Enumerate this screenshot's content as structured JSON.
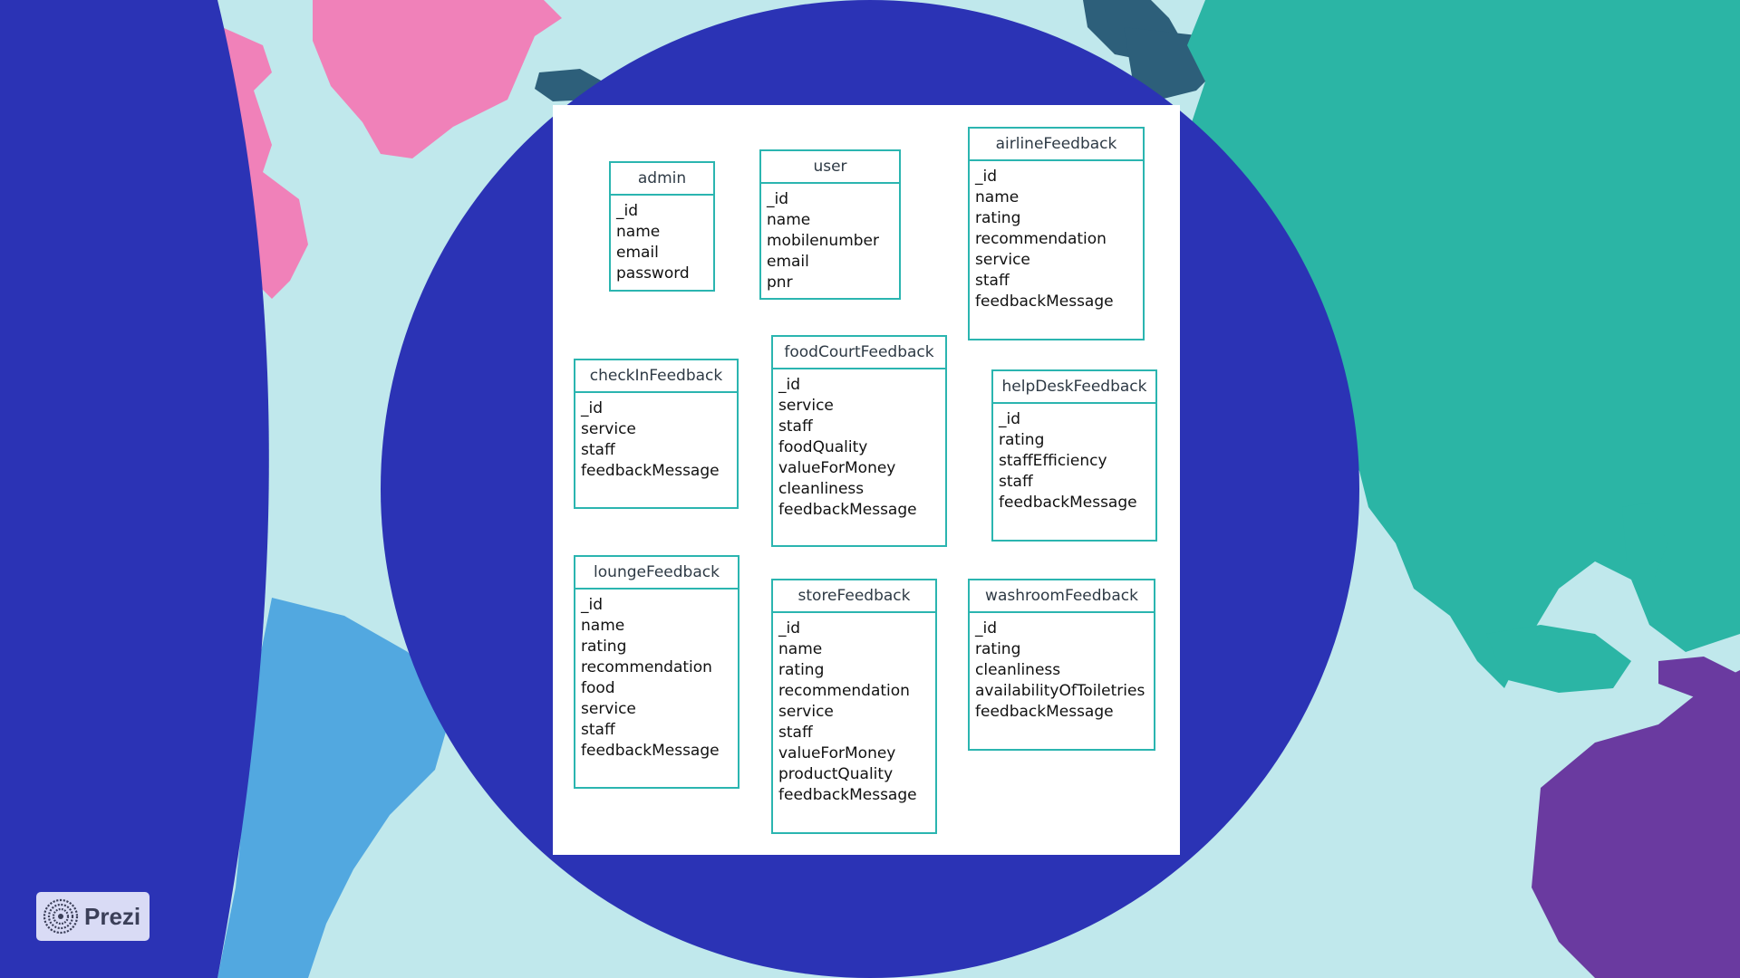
{
  "brand": {
    "label": "Prezi"
  },
  "colors": {
    "background": "#c0e8ec",
    "circle": "#2b33b5",
    "card": "#ffffff",
    "entity_border": "#2bb5b0",
    "greenland": "#f081b9",
    "asia": "#2bb5a5",
    "australia": "#6a3aa0",
    "south_america": "#52a8e0"
  },
  "entities": [
    {
      "name": "admin",
      "fields": [
        "_id",
        "name",
        "email",
        "password"
      ]
    },
    {
      "name": "user",
      "fields": [
        "_id",
        "name",
        "mobilenumber",
        "email",
        "pnr"
      ]
    },
    {
      "name": "airlineFeedback",
      "fields": [
        "_id",
        "name",
        "rating",
        "recommendation",
        "service",
        "staff",
        "feedbackMessage"
      ]
    },
    {
      "name": "checkInFeedback",
      "fields": [
        "_id",
        "service",
        "staff",
        "feedbackMessage"
      ]
    },
    {
      "name": "foodCourtFeedback",
      "fields": [
        "_id",
        "service",
        "staff",
        "foodQuality",
        "valueForMoney",
        "cleanliness",
        "feedbackMessage"
      ]
    },
    {
      "name": "helpDeskFeedback",
      "fields": [
        "_id",
        "rating",
        "staffEfficiency",
        "staff",
        "feedbackMessage"
      ]
    },
    {
      "name": "loungeFeedback",
      "fields": [
        "_id",
        "name",
        "rating",
        "recommendation",
        "food",
        "service",
        "staff",
        "feedbackMessage"
      ]
    },
    {
      "name": "storeFeedback",
      "fields": [
        "_id",
        "name",
        "rating",
        "recommendation",
        "service",
        "staff",
        "valueForMoney",
        "productQuality",
        "feedbackMessage"
      ]
    },
    {
      "name": "washroomFeedback",
      "fields": [
        "_id",
        "rating",
        "cleanliness",
        "availabilityOfToiletries",
        "feedbackMessage"
      ]
    }
  ]
}
